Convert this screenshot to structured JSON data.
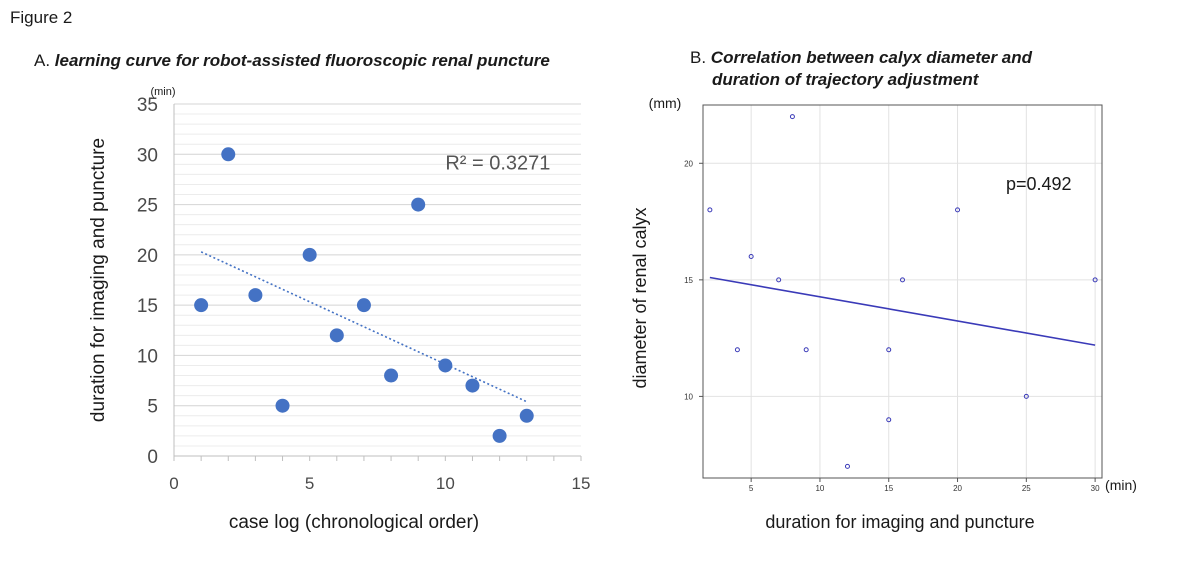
{
  "figure_label": "Figure 2",
  "chart_data": [
    {
      "type": "scatter",
      "panel": "A.",
      "title": "learning curve for robot-assisted fluoroscopic renal puncture",
      "xlabel": "case log (chronological order)",
      "ylabel": "duration for imaging and puncture",
      "yunit": "(min)",
      "xlim": [
        0,
        15
      ],
      "ylim": [
        0,
        35
      ],
      "xticks": [
        0,
        5,
        10,
        15
      ],
      "yticks": [
        0,
        5,
        10,
        15,
        20,
        25,
        30,
        35
      ],
      "grid": true,
      "points": [
        {
          "x": 1,
          "y": 15
        },
        {
          "x": 2,
          "y": 30
        },
        {
          "x": 3,
          "y": 16
        },
        {
          "x": 4,
          "y": 5
        },
        {
          "x": 5,
          "y": 20
        },
        {
          "x": 6,
          "y": 12
        },
        {
          "x": 7,
          "y": 15
        },
        {
          "x": 8,
          "y": 8
        },
        {
          "x": 9,
          "y": 25
        },
        {
          "x": 10,
          "y": 9
        },
        {
          "x": 11,
          "y": 7
        },
        {
          "x": 12,
          "y": 2
        },
        {
          "x": 13,
          "y": 4
        }
      ],
      "trendline": {
        "style": "dotted",
        "x": [
          1,
          13
        ],
        "y": [
          20.3,
          5.4
        ]
      },
      "annotation": "R² = 0.3271",
      "colors": {
        "points": "#4472c4",
        "trend": "#4472c4"
      }
    },
    {
      "type": "scatter",
      "panel": "B.",
      "title": "Correlation between calyx diameter and duration of trajectory adjustment",
      "title_lines": [
        "Correlation between calyx diameter and",
        "duration of trajectory adjustment"
      ],
      "xlabel": "duration for imaging and puncture",
      "ylabel": "diameter of renal calyx",
      "xunit": "(min)",
      "yunit": "(mm)",
      "xlim": [
        1.5,
        30.5
      ],
      "ylim": [
        6.5,
        22.5
      ],
      "xticks": [
        5,
        10,
        15,
        20,
        25,
        30
      ],
      "yticks": [
        10,
        15,
        20
      ],
      "grid": true,
      "points": [
        {
          "x": 2,
          "y": 18
        },
        {
          "x": 4,
          "y": 12
        },
        {
          "x": 5,
          "y": 16
        },
        {
          "x": 7,
          "y": 15
        },
        {
          "x": 8,
          "y": 22
        },
        {
          "x": 9,
          "y": 12
        },
        {
          "x": 12,
          "y": 7
        },
        {
          "x": 15,
          "y": 12
        },
        {
          "x": 15,
          "y": 9
        },
        {
          "x": 16,
          "y": 15
        },
        {
          "x": 20,
          "y": 18
        },
        {
          "x": 25,
          "y": 10
        },
        {
          "x": 30,
          "y": 15
        }
      ],
      "trendline": {
        "style": "solid",
        "x": [
          2,
          30
        ],
        "y": [
          15.1,
          12.2
        ]
      },
      "annotation": "p=0.492",
      "colors": {
        "points": "#3a3ab8",
        "trend": "#3a3ab8"
      }
    }
  ]
}
